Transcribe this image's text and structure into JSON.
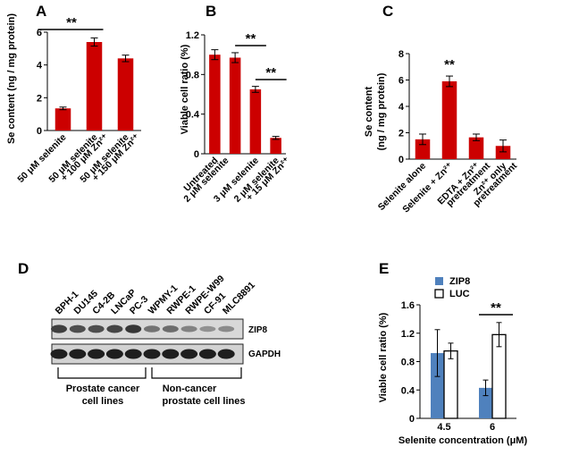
{
  "chart_data": [
    {
      "panel": "A",
      "type": "bar",
      "ylabel": "Se content  (ng / mg protein)",
      "ylim": [
        0,
        6
      ],
      "yticks": [
        0,
        2,
        4,
        6
      ],
      "categories": [
        "50 μM selenite",
        "50 μM selenite + 100 μM Zn²⁺",
        "50 μM selenite + 150 μM Zn²⁺"
      ],
      "values": [
        1.35,
        5.4,
        4.4
      ],
      "errors": [
        0.08,
        0.25,
        0.2
      ],
      "color": "#cc0000",
      "significance": [
        {
          "from": 0,
          "to": 1,
          "label": "**"
        }
      ]
    },
    {
      "panel": "B",
      "type": "bar",
      "ylabel": "Viable cell ratio (%)",
      "ylim": [
        0,
        1.2
      ],
      "yticks": [
        "0",
        "0.4",
        "0.8",
        "1.2"
      ],
      "categories": [
        "Untreated",
        "2 μM selenite",
        "3 μM selenite",
        "2 μM selenite + 15 μM Zn²⁺"
      ],
      "values": [
        1.0,
        0.97,
        0.65,
        0.16
      ],
      "errors": [
        0.05,
        0.05,
        0.03,
        0.015
      ],
      "color": "#cc0000",
      "significance": [
        {
          "from": 1,
          "to": 2,
          "label": "**"
        },
        {
          "from": 2,
          "to": 3,
          "label": "**"
        }
      ]
    },
    {
      "panel": "C",
      "type": "bar",
      "ylabel_lines": [
        "Se content",
        "(ng / mg protein)"
      ],
      "ylim": [
        0,
        8
      ],
      "yticks": [
        0,
        2,
        4,
        6,
        8
      ],
      "categories": [
        "Selenite alone",
        "Selenite + Zn²⁺",
        "EDTA + Zn²⁺ pretreatment",
        "Zn²⁺ only pretreatment"
      ],
      "values": [
        1.5,
        5.9,
        1.65,
        1.0
      ],
      "errors": [
        0.4,
        0.4,
        0.25,
        0.45
      ],
      "color": "#cc0000",
      "significance": [
        {
          "index": 1,
          "label": "**"
        }
      ]
    },
    {
      "panel": "E",
      "type": "bar",
      "ylabel": "Viable cell ratio (%)",
      "xlabel": "Selenite concentration  (μM)",
      "ylim": [
        0,
        1.6
      ],
      "yticks": [
        "0",
        "0.4",
        "0.8",
        "1.2",
        "1.6"
      ],
      "categories": [
        "4.5",
        "6"
      ],
      "series": [
        {
          "name": "ZIP8",
          "values": [
            0.92,
            0.43
          ],
          "errors": [
            0.33,
            0.11
          ],
          "color": "#4f81bd"
        },
        {
          "name": "LUC",
          "values": [
            0.95,
            1.18
          ],
          "errors": [
            0.11,
            0.17
          ],
          "color": "#ffffff"
        }
      ],
      "legend_position": "top-left",
      "significance": [
        {
          "category": 1,
          "label": "**"
        }
      ]
    }
  ],
  "panels": {
    "a": "A",
    "b": "B",
    "c": "C",
    "d": "D",
    "e": "E"
  },
  "blot": {
    "lanes": [
      "BPH-1",
      "DU145",
      "C4-2B",
      "LNCaP",
      "PC-3",
      "WPMY-1",
      "RWPE-1",
      "RWPE-W99",
      "CF-91",
      "MLC8891"
    ],
    "rows": [
      "ZIP8",
      "GAPDH"
    ],
    "zip8_intensity": [
      0.85,
      0.75,
      0.75,
      0.8,
      0.9,
      0.5,
      0.55,
      0.4,
      0.3,
      0.35
    ],
    "groups": [
      {
        "lines": [
          "Prostate cancer",
          "cell lines"
        ]
      },
      {
        "lines": [
          "Non-cancer",
          "prostate cell lines"
        ]
      }
    ]
  }
}
